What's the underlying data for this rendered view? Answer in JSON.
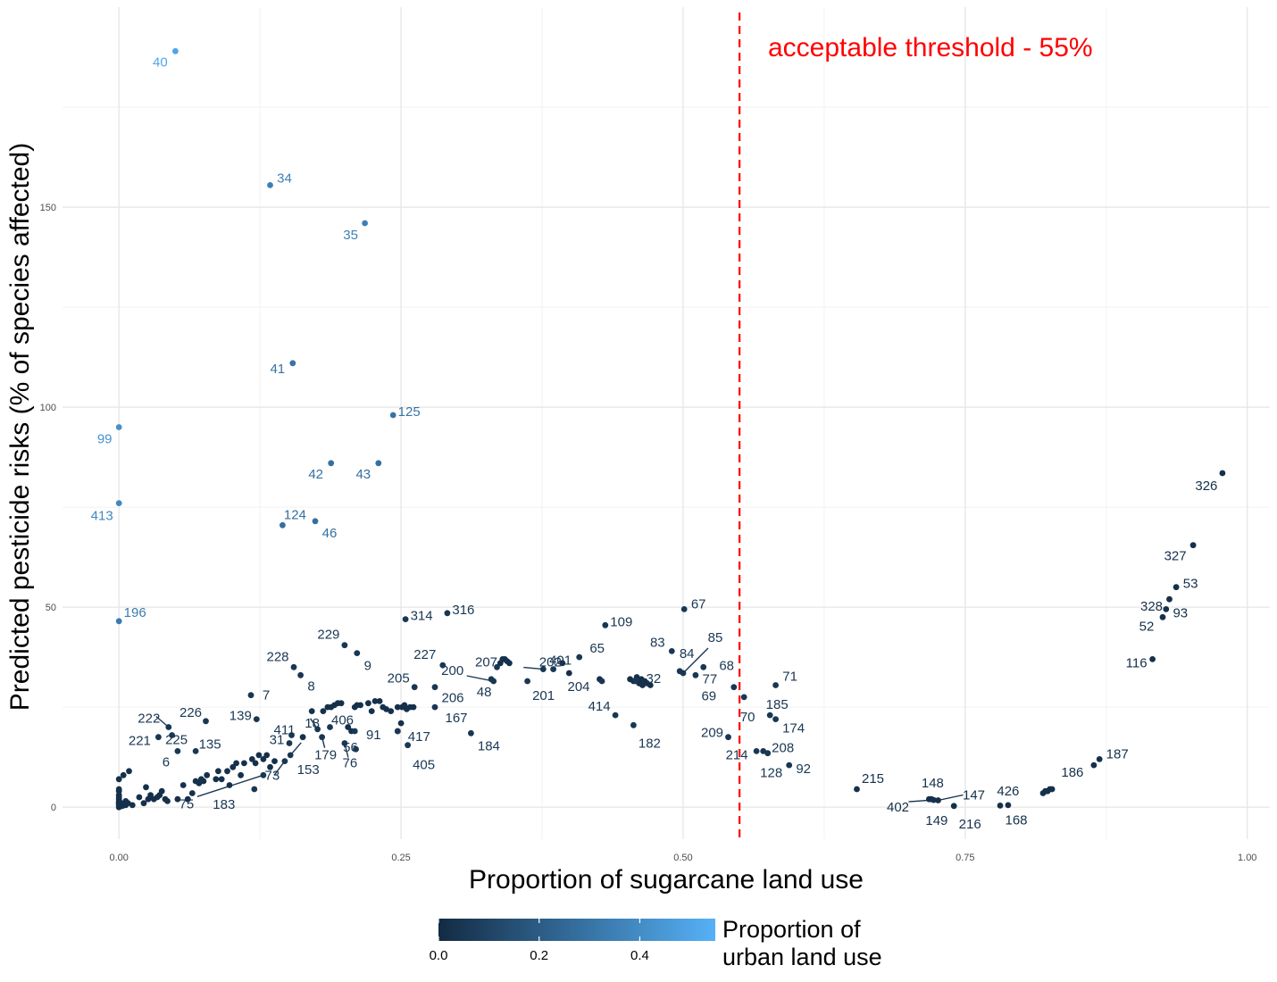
{
  "chart_data": {
    "type": "scatter",
    "xlabel": "Proportion of sugarcane land use",
    "ylabel": "Predicted pesticide risks (% of species affected)",
    "xlim": [
      -0.05,
      1.02
    ],
    "ylim": [
      -8,
      200
    ],
    "x_ticks": [
      0,
      0.25,
      0.5,
      0.75,
      1
    ],
    "x_tick_labels": [
      "0.00",
      "0.25",
      "0.50",
      "0.75",
      "1.00"
    ],
    "y_ticks": [
      0,
      50,
      100,
      150
    ],
    "y_tick_labels": [
      "0",
      "50",
      "100",
      "150"
    ],
    "grid": true,
    "threshold": {
      "x": 0.55,
      "label": "acceptable threshold - 55%",
      "color": "#ff0000",
      "style": "dashed"
    },
    "color_scale": {
      "title_lines": [
        "Proportion of",
        "urban land use"
      ],
      "low_color": "#132b43",
      "high_color": "#56b1f7",
      "range": [
        0,
        0.55
      ],
      "tick_values": [
        0,
        0.2,
        0.4
      ],
      "tick_labels": [
        "0.0",
        "0.2",
        "0.4"
      ],
      "placement": "bottom"
    },
    "labeled_points": [
      {
        "id": "40",
        "x": 0.05,
        "y": 189,
        "c": 0.5
      },
      {
        "id": "34",
        "x": 0.134,
        "y": 155.5,
        "c": 0.35
      },
      {
        "id": "35",
        "x": 0.218,
        "y": 146,
        "c": 0.35
      },
      {
        "id": "41",
        "x": 0.154,
        "y": 111,
        "c": 0.3
      },
      {
        "id": "125",
        "x": 0.243,
        "y": 98,
        "c": 0.3
      },
      {
        "id": "99",
        "x": 0.0,
        "y": 95,
        "c": 0.42
      },
      {
        "id": "42",
        "x": 0.188,
        "y": 86,
        "c": 0.28
      },
      {
        "id": "43",
        "x": 0.23,
        "y": 86,
        "c": 0.28
      },
      {
        "id": "326",
        "x": 0.978,
        "y": 83.5,
        "c": 0.02
      },
      {
        "id": "413",
        "x": 0.0,
        "y": 76,
        "c": 0.38
      },
      {
        "id": "124",
        "x": 0.145,
        "y": 70.5,
        "c": 0.28
      },
      {
        "id": "46",
        "x": 0.174,
        "y": 71.5,
        "c": 0.28
      },
      {
        "id": "327",
        "x": 0.952,
        "y": 65.5,
        "c": 0.02
      },
      {
        "id": "53",
        "x": 0.937,
        "y": 55,
        "c": 0.02
      },
      {
        "id": "328",
        "x": 0.931,
        "y": 52,
        "c": 0.02
      },
      {
        "id": "93",
        "x": 0.928,
        "y": 49.5,
        "c": 0.02
      },
      {
        "id": "52",
        "x": 0.925,
        "y": 47.5,
        "c": 0.02
      },
      {
        "id": "67",
        "x": 0.501,
        "y": 49.5,
        "c": 0.05
      },
      {
        "id": "196",
        "x": 0.0,
        "y": 46.5,
        "c": 0.33
      },
      {
        "id": "314",
        "x": 0.254,
        "y": 47,
        "c": 0.05
      },
      {
        "id": "316",
        "x": 0.291,
        "y": 48.5,
        "c": 0.05
      },
      {
        "id": "109",
        "x": 0.431,
        "y": 45.5,
        "c": 0.05
      },
      {
        "id": "229",
        "x": 0.2,
        "y": 40.5,
        "c": 0.05
      },
      {
        "id": "9",
        "x": 0.211,
        "y": 38.5,
        "c": 0.05
      },
      {
        "id": "116",
        "x": 0.916,
        "y": 37,
        "c": 0.02
      },
      {
        "id": "83",
        "x": 0.49,
        "y": 39,
        "c": 0.05
      },
      {
        "id": "85",
        "x": 0.5,
        "y": 33.5,
        "c": 0.05
      },
      {
        "id": "84",
        "x": 0.497,
        "y": 34,
        "c": 0.05
      },
      {
        "id": "228",
        "x": 0.155,
        "y": 35,
        "c": 0.05
      },
      {
        "id": "8",
        "x": 0.161,
        "y": 33,
        "c": 0.05
      },
      {
        "id": "227",
        "x": 0.287,
        "y": 35.5,
        "c": 0.05
      },
      {
        "id": "207",
        "x": 0.335,
        "y": 35,
        "c": 0.05
      },
      {
        "id": "401",
        "x": 0.385,
        "y": 34.5,
        "c": 0.05
      },
      {
        "id": "65",
        "x": 0.408,
        "y": 37.5,
        "c": 0.05
      },
      {
        "id": "68",
        "x": 0.518,
        "y": 35,
        "c": 0.05
      },
      {
        "id": "200",
        "x": 0.332,
        "y": 31.5,
        "c": 0.05
      },
      {
        "id": "48",
        "x": 0.33,
        "y": 32,
        "c": 0.05
      },
      {
        "id": "202",
        "x": 0.376,
        "y": 34.5,
        "c": 0.05
      },
      {
        "id": "201",
        "x": 0.362,
        "y": 31.5,
        "c": 0.05
      },
      {
        "id": "204",
        "x": 0.428,
        "y": 31.5,
        "c": 0.05
      },
      {
        "id": "32",
        "x": 0.458,
        "y": 31.5,
        "c": 0.05
      },
      {
        "id": "77",
        "x": 0.511,
        "y": 33,
        "c": 0.05
      },
      {
        "id": "205",
        "x": 0.262,
        "y": 30,
        "c": 0.05
      },
      {
        "id": "206",
        "x": 0.28,
        "y": 30,
        "c": 0.05
      },
      {
        "id": "71",
        "x": 0.582,
        "y": 30.5,
        "c": 0.05
      },
      {
        "id": "69",
        "x": 0.545,
        "y": 30,
        "c": 0.05
      },
      {
        "id": "70",
        "x": 0.554,
        "y": 27.5,
        "c": 0.05
      },
      {
        "id": "7",
        "x": 0.117,
        "y": 28,
        "c": 0.05
      },
      {
        "id": "139",
        "x": 0.122,
        "y": 22,
        "c": 0.05
      },
      {
        "id": "185",
        "x": 0.577,
        "y": 23,
        "c": 0.05
      },
      {
        "id": "174",
        "x": 0.582,
        "y": 22,
        "c": 0.05
      },
      {
        "id": "414",
        "x": 0.44,
        "y": 23,
        "c": 0.05
      },
      {
        "id": "167",
        "x": 0.28,
        "y": 25,
        "c": 0.05
      },
      {
        "id": "182",
        "x": 0.456,
        "y": 20.5,
        "c": 0.05
      },
      {
        "id": "222",
        "x": 0.044,
        "y": 20,
        "c": 0.05
      },
      {
        "id": "226",
        "x": 0.077,
        "y": 21.5,
        "c": 0.05
      },
      {
        "id": "225",
        "x": 0.047,
        "y": 18,
        "c": 0.05
      },
      {
        "id": "221",
        "x": 0.035,
        "y": 17.5,
        "c": 0.05
      },
      {
        "id": "411",
        "x": 0.153,
        "y": 18,
        "c": 0.05
      },
      {
        "id": "18",
        "x": 0.176,
        "y": 19.5,
        "c": 0.05
      },
      {
        "id": "406",
        "x": 0.187,
        "y": 20,
        "c": 0.05
      },
      {
        "id": "179",
        "x": 0.18,
        "y": 17.5,
        "c": 0.05
      },
      {
        "id": "91",
        "x": 0.209,
        "y": 19,
        "c": 0.05
      },
      {
        "id": "417",
        "x": 0.247,
        "y": 19,
        "c": 0.05
      },
      {
        "id": "184",
        "x": 0.312,
        "y": 18.5,
        "c": 0.05
      },
      {
        "id": "209",
        "x": 0.54,
        "y": 17.5,
        "c": 0.05
      },
      {
        "id": "31",
        "x": 0.151,
        "y": 16,
        "c": 0.05
      },
      {
        "id": "76",
        "x": 0.2,
        "y": 16,
        "c": 0.05
      },
      {
        "id": "56",
        "x": 0.21,
        "y": 14.5,
        "c": 0.05
      },
      {
        "id": "405",
        "x": 0.256,
        "y": 15.5,
        "c": 0.05
      },
      {
        "id": "214",
        "x": 0.565,
        "y": 14,
        "c": 0.05
      },
      {
        "id": "208",
        "x": 0.571,
        "y": 14,
        "c": 0.05
      },
      {
        "id": "128",
        "x": 0.575,
        "y": 13.5,
        "c": 0.05
      },
      {
        "id": "6",
        "x": 0.052,
        "y": 14,
        "c": 0.05
      },
      {
        "id": "135",
        "x": 0.068,
        "y": 14,
        "c": 0.05
      },
      {
        "id": "153",
        "x": 0.152,
        "y": 13,
        "c": 0.05
      },
      {
        "id": "92",
        "x": 0.594,
        "y": 10.5,
        "c": 0.05
      },
      {
        "id": "73",
        "x": 0.147,
        "y": 11.5,
        "c": 0.05
      },
      {
        "id": "75",
        "x": 0.128,
        "y": 8,
        "c": 0.05
      },
      {
        "id": "183",
        "x": 0.12,
        "y": 4.5,
        "c": 0.05
      },
      {
        "id": "187",
        "x": 0.869,
        "y": 12,
        "c": 0.02
      },
      {
        "id": "186",
        "x": 0.864,
        "y": 10.5,
        "c": 0.02
      },
      {
        "id": "215",
        "x": 0.654,
        "y": 4.5,
        "c": 0.02
      },
      {
        "id": "148",
        "x": 0.718,
        "y": 2,
        "c": 0.02
      },
      {
        "id": "147",
        "x": 0.726,
        "y": 1.7,
        "c": 0.02
      },
      {
        "id": "402",
        "x": 0.722,
        "y": 1.8,
        "c": 0.02
      },
      {
        "id": "149",
        "x": 0.72,
        "y": 2,
        "c": 0.02
      },
      {
        "id": "426",
        "x": 0.788,
        "y": 0.5,
        "c": 0.02
      },
      {
        "id": "216",
        "x": 0.74,
        "y": 0.3,
        "c": 0.02
      },
      {
        "id": "168",
        "x": 0.781,
        "y": 0.4,
        "c": 0.02
      }
    ],
    "unlabeled_points": [
      [
        0,
        0,
        0.02
      ],
      [
        0,
        0.5,
        0.02
      ],
      [
        0,
        1,
        0.02
      ],
      [
        0,
        1.5,
        0.02
      ],
      [
        0,
        2,
        0.02
      ],
      [
        0,
        2.5,
        0.02
      ],
      [
        0,
        3,
        0.02
      ],
      [
        0,
        4,
        0.02
      ],
      [
        0,
        4.5,
        0.02
      ],
      [
        0,
        7,
        0.02
      ],
      [
        0,
        0.8,
        0.02
      ],
      [
        0,
        1.2,
        0.02
      ],
      [
        0.002,
        1,
        0.02
      ],
      [
        0.003,
        0.3,
        0.02
      ],
      [
        0.004,
        8,
        0.02
      ],
      [
        0.006,
        1.5,
        0.02
      ],
      [
        0.006,
        0.5,
        0.02
      ],
      [
        0.008,
        1,
        0.02
      ],
      [
        0.009,
        9,
        0.02
      ],
      [
        0.012,
        0.5,
        0.02
      ],
      [
        0.018,
        2.5,
        0.02
      ],
      [
        0.022,
        1,
        0.02
      ],
      [
        0.024,
        5,
        0.02
      ],
      [
        0.026,
        2,
        0.02
      ],
      [
        0.028,
        3,
        0.02
      ],
      [
        0.031,
        2,
        0.02
      ],
      [
        0.034,
        2.5,
        0.02
      ],
      [
        0.036,
        3,
        0.02
      ],
      [
        0.038,
        4,
        0.02
      ],
      [
        0.041,
        2,
        0.02
      ],
      [
        0.043,
        1.5,
        0.02
      ],
      [
        0.052,
        2,
        0.02
      ],
      [
        0.057,
        5.5,
        0.02
      ],
      [
        0.061,
        2,
        0.02
      ],
      [
        0.065,
        3.5,
        0.02
      ],
      [
        0.068,
        6.5,
        0.02
      ],
      [
        0.071,
        6,
        0.02
      ],
      [
        0.073,
        7,
        0.02
      ],
      [
        0.075,
        6.5,
        0.02
      ],
      [
        0.078,
        8,
        0.02
      ],
      [
        0.086,
        7,
        0.02
      ],
      [
        0.088,
        9,
        0.02
      ],
      [
        0.091,
        7,
        0.02
      ],
      [
        0.096,
        9,
        0.02
      ],
      [
        0.098,
        5.5,
        0.02
      ],
      [
        0.101,
        10,
        0.02
      ],
      [
        0.104,
        11,
        0.02
      ],
      [
        0.108,
        8,
        0.02
      ],
      [
        0.111,
        11,
        0.02
      ],
      [
        0.118,
        12,
        0.02
      ],
      [
        0.121,
        11,
        0.02
      ],
      [
        0.124,
        13,
        0.02
      ],
      [
        0.128,
        12,
        0.02
      ],
      [
        0.131,
        13,
        0.02
      ],
      [
        0.134,
        10,
        0.02
      ],
      [
        0.138,
        11.5,
        0.02
      ],
      [
        0.171,
        24,
        0.02
      ],
      [
        0.181,
        24,
        0.02
      ],
      [
        0.185,
        25,
        0.02
      ],
      [
        0.188,
        25,
        0.02
      ],
      [
        0.191,
        25.5,
        0.02
      ],
      [
        0.194,
        26,
        0.02
      ],
      [
        0.197,
        26,
        0.02
      ],
      [
        0.209,
        25,
        0.02
      ],
      [
        0.211,
        25.5,
        0.02
      ],
      [
        0.214,
        25.5,
        0.02
      ],
      [
        0.221,
        26,
        0.02
      ],
      [
        0.224,
        24,
        0.02
      ],
      [
        0.227,
        26.5,
        0.02
      ],
      [
        0.231,
        26.5,
        0.02
      ],
      [
        0.234,
        25,
        0.02
      ],
      [
        0.237,
        24.5,
        0.02
      ],
      [
        0.241,
        24,
        0.02
      ],
      [
        0.247,
        25,
        0.02
      ],
      [
        0.251,
        25,
        0.02
      ],
      [
        0.253,
        25.5,
        0.02
      ],
      [
        0.255,
        24.5,
        0.02
      ],
      [
        0.258,
        25,
        0.02
      ],
      [
        0.261,
        25,
        0.02
      ],
      [
        0.25,
        21,
        0.02
      ],
      [
        0.247,
        19,
        0.02
      ],
      [
        0.203,
        20,
        0.02
      ],
      [
        0.206,
        19,
        0.02
      ],
      [
        0.163,
        17.5,
        0.02
      ],
      [
        0.338,
        36,
        0.02
      ],
      [
        0.34,
        37,
        0.02
      ],
      [
        0.342,
        37,
        0.02
      ],
      [
        0.344,
        36.5,
        0.02
      ],
      [
        0.346,
        36,
        0.02
      ],
      [
        0.393,
        36,
        0.02
      ],
      [
        0.399,
        33.5,
        0.02
      ],
      [
        0.453,
        32,
        0.02
      ],
      [
        0.456,
        31.5,
        0.02
      ],
      [
        0.459,
        32.5,
        0.02
      ],
      [
        0.461,
        31,
        0.02
      ],
      [
        0.463,
        32,
        0.02
      ],
      [
        0.466,
        31.5,
        0.02
      ],
      [
        0.468,
        31,
        0.02
      ],
      [
        0.471,
        30.5,
        0.02
      ],
      [
        0.464,
        30.5,
        0.02
      ],
      [
        0.426,
        32,
        0.02
      ],
      [
        0.819,
        3.5,
        0.02
      ],
      [
        0.821,
        4,
        0.02
      ],
      [
        0.823,
        4,
        0.02
      ],
      [
        0.825,
        4.5,
        0.02
      ],
      [
        0.827,
        4.5,
        0.02
      ]
    ]
  }
}
